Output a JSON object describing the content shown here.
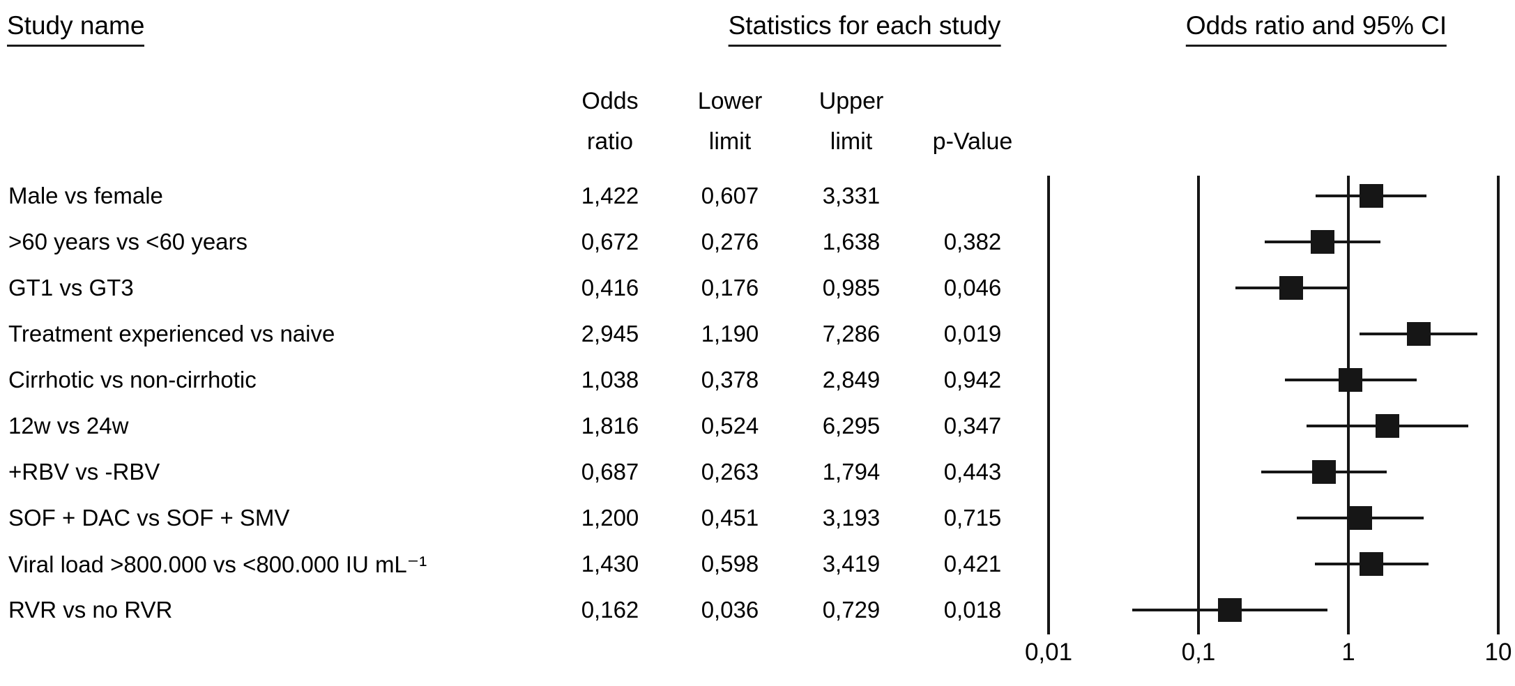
{
  "figure": {
    "heading_left": "Study name",
    "heading_center": "Statistics for each study",
    "heading_right": "Odds ratio and 95% CI"
  },
  "chart_data": {
    "type": "forest",
    "scale": "log10",
    "axis": {
      "min": 0.01,
      "max": 10,
      "tick_values": [
        0.01,
        0.1,
        1,
        10
      ],
      "tick_labels": [
        "0,01",
        "0,1",
        "1",
        "10"
      ]
    },
    "stat_columns": [
      {
        "top": "Odds",
        "bottom": "ratio"
      },
      {
        "top": "Lower",
        "bottom": "limit"
      },
      {
        "top": "Upper",
        "bottom": "limit"
      },
      {
        "top": "",
        "bottom": "p-Value"
      }
    ],
    "rows": [
      {
        "label": "Male vs female",
        "odds_ratio": "1,422",
        "lower_limit": "0,607",
        "upper_limit": "3,331",
        "p_value": ""
      },
      {
        "label": ">60 years vs <60 years",
        "odds_ratio": "0,672",
        "lower_limit": "0,276",
        "upper_limit": "1,638",
        "p_value": "0,382"
      },
      {
        "label": "GT1 vs GT3",
        "odds_ratio": "0,416",
        "lower_limit": "0,176",
        "upper_limit": "0,985",
        "p_value": "0,046"
      },
      {
        "label": "Treatment experienced vs naive",
        "odds_ratio": "2,945",
        "lower_limit": "1,190",
        "upper_limit": "7,286",
        "p_value": "0,019"
      },
      {
        "label": "Cirrhotic vs non-cirrhotic",
        "odds_ratio": "1,038",
        "lower_limit": "0,378",
        "upper_limit": "2,849",
        "p_value": "0,942"
      },
      {
        "label": "12w vs 24w",
        "odds_ratio": "1,816",
        "lower_limit": "0,524",
        "upper_limit": "6,295",
        "p_value": "0,347"
      },
      {
        "label": "+RBV vs -RBV",
        "odds_ratio": "0,687",
        "lower_limit": "0,263",
        "upper_limit": "1,794",
        "p_value": "0,443"
      },
      {
        "label": "SOF + DAC vs SOF + SMV",
        "odds_ratio": "1,200",
        "lower_limit": "0,451",
        "upper_limit": "3,193",
        "p_value": "0,715"
      },
      {
        "label": "Viral load >800.000 vs <800.000 IU mL⁻¹",
        "odds_ratio": "1,430",
        "lower_limit": "0,598",
        "upper_limit": "3,419",
        "p_value": "0,421"
      },
      {
        "label": "RVR vs no RVR",
        "odds_ratio": "0,162",
        "lower_limit": "0,036",
        "upper_limit": "0,729",
        "p_value": "0,018"
      }
    ],
    "colors": {
      "marker": "#161616",
      "line": "#161616",
      "text": "#000000",
      "background": "#ffffff"
    }
  }
}
